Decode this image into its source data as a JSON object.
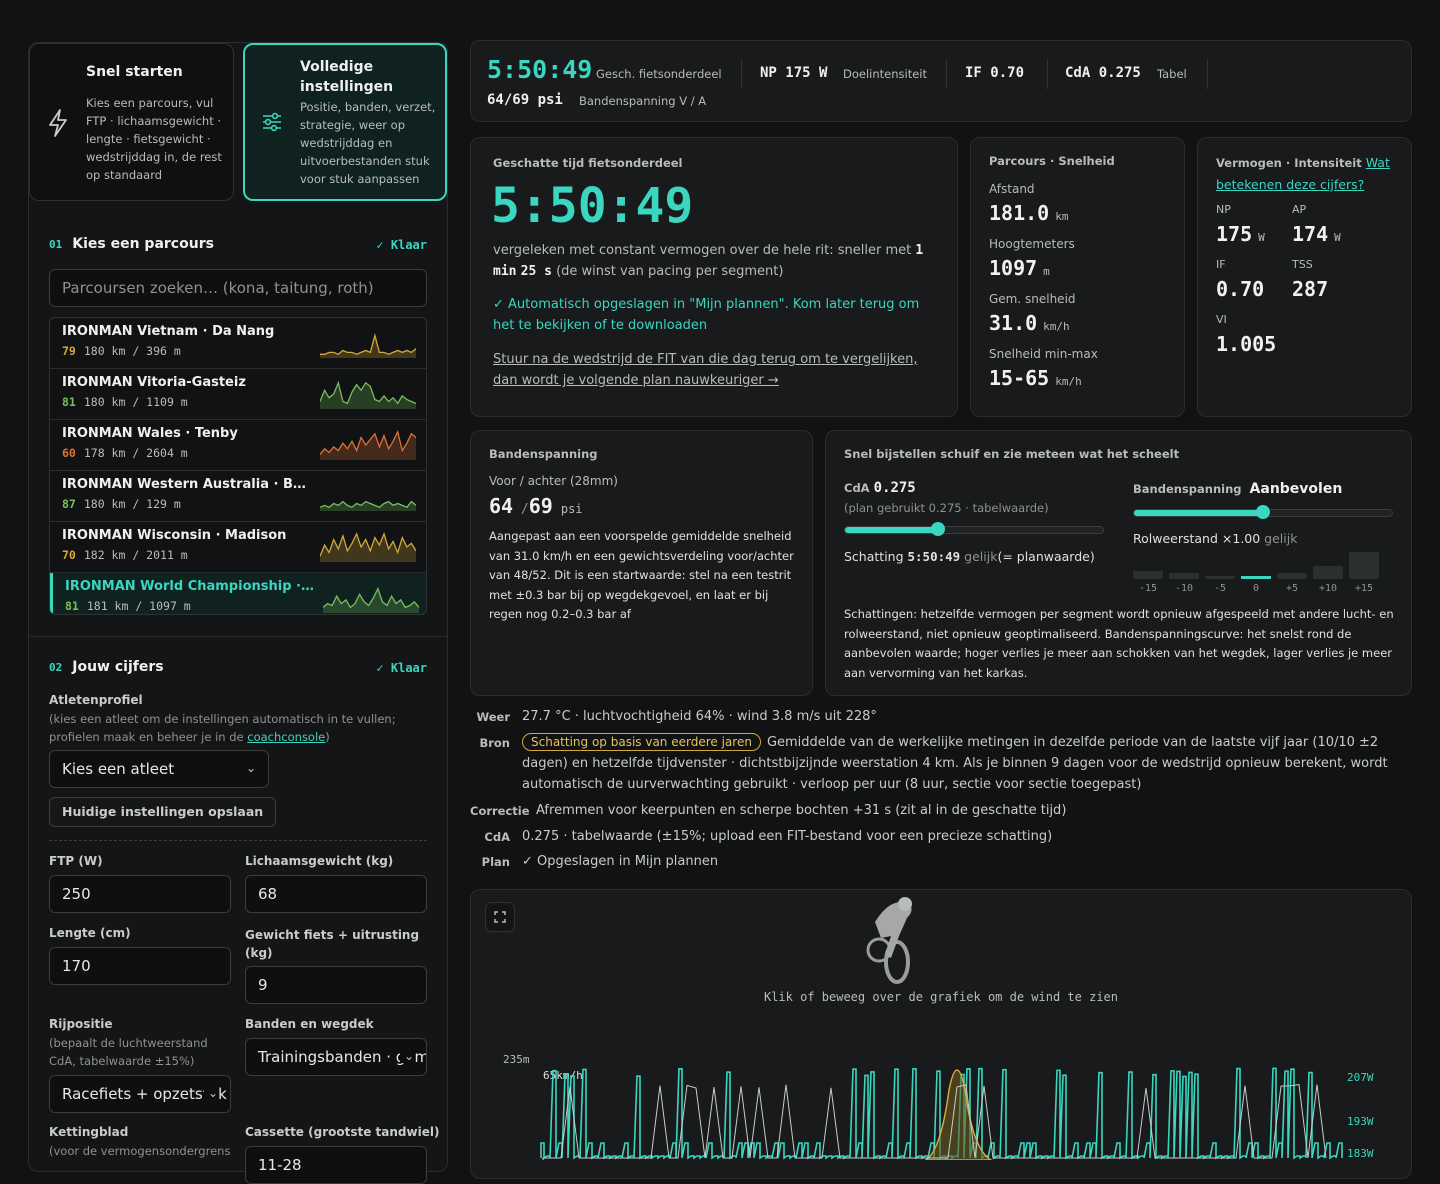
{
  "modes": {
    "quick": {
      "title": "Snel starten",
      "desc": "Kies een parcours, vul FTP · lichaamsgewicht · lengte · fietsgewicht · wedstrijddag in, de rest op standaard",
      "icon": "lightning-icon"
    },
    "full": {
      "title1": "Volledige",
      "title2": "instellingen",
      "desc": "Positie, banden, verzet, strategie, weer op wedstrijddag en uitvoerbestanden stuk voor stuk aanpassen",
      "icon": "sliders-icon"
    }
  },
  "section1": {
    "num": "01",
    "title": "Kies een parcours",
    "done": "✓ Klaar",
    "search_placeholder": "Parcoursen zoeken… (kona, taitung, roth)"
  },
  "courses": [
    {
      "name": "IRONMAN Vietnam · Da Nang",
      "score": "79",
      "stats": "180 km / 396 m",
      "color": "#d4a93b",
      "profile": [
        2,
        2,
        3,
        3,
        2,
        4,
        3,
        3,
        2,
        3,
        4,
        3,
        12,
        3,
        3,
        2,
        3,
        4,
        3,
        4,
        3,
        5
      ]
    },
    {
      "name": "IRONMAN Vitoria-Gasteiz",
      "score": "81",
      "stats": "180 km / 1109 m",
      "color": "#76c05a",
      "profile": [
        4,
        10,
        6,
        8,
        14,
        4,
        3,
        9,
        13,
        10,
        14,
        12,
        5,
        4,
        7,
        4,
        6,
        3,
        7,
        5,
        4,
        3
      ]
    },
    {
      "name": "IRONMAN Wales · Tenby",
      "score": "60",
      "stats": "178 km / 2604 m",
      "color": "#e0703a",
      "profile": [
        3,
        6,
        4,
        7,
        5,
        9,
        6,
        10,
        5,
        12,
        8,
        11,
        14,
        7,
        13,
        6,
        10,
        15,
        5,
        9,
        14,
        12
      ]
    },
    {
      "name": "IRONMAN Western Australia · Busselton",
      "score": "87",
      "stats": "180 km / 129 m",
      "color": "#76c05a",
      "profile": [
        2,
        3,
        2,
        4,
        3,
        5,
        3,
        2,
        4,
        3,
        5,
        4,
        3,
        2,
        4,
        5,
        3,
        4,
        3,
        2,
        5,
        3
      ]
    },
    {
      "name": "IRONMAN Wisconsin · Madison",
      "score": "70",
      "stats": "182 km / 2011 m",
      "color": "#d4a93b",
      "profile": [
        3,
        9,
        5,
        12,
        7,
        14,
        6,
        10,
        15,
        8,
        12,
        6,
        13,
        9,
        15,
        7,
        11,
        5,
        13,
        8,
        10,
        6
      ]
    },
    {
      "name": "IRONMAN World Championship · Kona",
      "score": "81",
      "stats": "181 km / 1097 m",
      "color": "#76c05a",
      "profile": [
        3,
        5,
        4,
        9,
        5,
        7,
        3,
        5,
        10,
        6,
        4,
        8,
        13,
        6,
        4,
        9,
        5,
        7,
        3,
        4,
        6,
        3
      ]
    }
  ],
  "section2": {
    "num": "02",
    "title": "Jouw cijfers",
    "done": "✓ Klaar"
  },
  "athlete": {
    "label": "Atletenprofiel",
    "hint": "(kies een atleet om de instellingen automatisch in te vullen; profielen maak en beheer je in de ",
    "hint_link": "coachconsole",
    "hint_end": ")",
    "select": "Kies een atleet",
    "save": "Huidige instellingen opslaan"
  },
  "inputs": {
    "ftp_label": "FTP  (W)",
    "ftp": "250",
    "weight_label": "Lichaamsgewicht (kg)",
    "weight": "68",
    "height_label": "Lengte (cm)",
    "height": "170",
    "bike_label": "Gewicht fiets + uitrusting (kg)",
    "bike": "9",
    "pos_label": "Rijpositie",
    "pos_hint": "(bepaalt de luchtweerstand CdA, tabelwaarde ±15%)",
    "pos": "Racefiets + opzetstuk",
    "tire_label": "Banden en wegdek",
    "tire": "Trainingsbanden · gemiddeld",
    "chain_label": "Kettingblad",
    "chain_hint": "(voor de vermogensondergrens",
    "cass_label": "Cassette (grootste tandwiel)",
    "cass": "11-28"
  },
  "summary": {
    "time": "5:50:49",
    "time_label": "Gesch. fietsonderdeel",
    "np": "NP 175 W",
    "np_label": "Doelintensiteit",
    "if": "IF 0.70",
    "cda": "CdA 0.275",
    "cda_label": "Tabel",
    "psi": "64/69 psi",
    "psi_label": "Bandenspanning V / A"
  },
  "est": {
    "label": "Geschatte tijd fietsonderdeel",
    "time": "5:50:49",
    "compare_a": "vergeleken met constant vermogen over de hele rit: sneller met ",
    "compare_b": "1 min",
    "compare_c": "25 s",
    "compare_d": " (de winst van pacing per segment)",
    "saved": "✓ Automatisch opgeslagen in \"Mijn plannen\". Kom later terug om het te bekijken of te downloaden",
    "fit": "Stuur na de wedstrijd de FIT van die dag terug om te vergelijken, dan wordt je volgende plan nauwkeuriger →"
  },
  "route": {
    "title": "Parcours · Snelheid",
    "dist_l": "Afstand",
    "dist": "181.0",
    "dist_u": "km",
    "elev_l": "Hoogtemeters",
    "elev": "1097",
    "elev_u": "m",
    "avg_l": "Gem. snelheid",
    "avg": "31.0",
    "avg_u": "km/h",
    "range_l": "Snelheid min-max",
    "range": "15-65",
    "range_u": "km/h"
  },
  "power": {
    "title": "Vermogen · Intensiteit",
    "link": "Wat betekenen deze cijfers?",
    "np_l": "NP",
    "np": "175",
    "ap_l": "AP",
    "ap": "174",
    "if_l": "IF",
    "if": "0.70",
    "tss_l": "TSS",
    "tss": "287",
    "vi_l": "VI",
    "vi": "1.005",
    "w": "W"
  },
  "tire": {
    "title": "Bandenspanning",
    "sub": "Voor / achter (28mm)",
    "f": "64",
    "r": "69",
    "u": "psi",
    "text": "Aangepast aan een voorspelde gemiddelde snelheid van 31.0 km/h en een gewichtsverdeling voor/achter van 48/52. Dit is een startwaarde: stel na een testrit met ±0.3 bar bij op wegdekgevoel, en laat er bij regen nog 0.2–0.3 bar af"
  },
  "adjust": {
    "title": "Snel bijstellen schuif en zie meteen wat het scheelt",
    "cda_l": "CdA",
    "cda": "0.275",
    "cda_hint": "(plan gebruikt 0.275 · tabelwaarde)",
    "cda_pos": 0.36,
    "est_a": "Schatting ",
    "est_t": "5:50:49",
    "est_b": " gelijk",
    "est_c": "(= planwaarde)",
    "tp_l": "Bandenspanning",
    "tp": "Aanbevolen",
    "tp_pos": 0.5,
    "rr_a": "Rolweerstand ×1.00",
    "rr_b": " gelijk",
    "bars": [
      {
        "label": "-15",
        "v": 0.3
      },
      {
        "label": "-10",
        "v": 0.2
      },
      {
        "label": "-5",
        "v": 0.12
      },
      {
        "label": "0",
        "v": 0.12
      },
      {
        "label": "+5",
        "v": 0.2
      },
      {
        "label": "+10",
        "v": 0.45
      },
      {
        "label": "+15",
        "v": 0.95
      }
    ],
    "note": "Schattingen: hetzelfde vermogen per segment wordt opnieuw afgespeeld met andere lucht- en rolweerstand, niet opnieuw geoptimaliseerd. Bandenspanningscurve: het snelst rond de aanbevolen waarde; hoger verlies je meer aan schokken van het wegdek, lager verlies je meer aan vervorming van het karkas."
  },
  "info": {
    "weer_l": "Weer",
    "weer": "27.7 °C · luchtvochtigheid 64% · wind 3.8 m/s uit 228°",
    "bron_l": "Bron",
    "bron_pill": "Schatting op basis van eerdere jaren",
    "bron": "Gemiddelde van de werkelijke metingen in dezelfde periode van de laatste vijf jaar (10/10 ±2 dagen) en hetzelfde tijdvenster · dichtstbijzijnde weerstation 4 km. Als je binnen 9 dagen voor de wedstrijd opnieuw berekent, wordt automatisch de uurverwachting gebruikt · verloop per uur (8 uur, sectie voor sectie toegepast)",
    "corr_l": "Correctie",
    "corr": "Afremmen voor keerpunten en scherpe bochten +31 s (zit al in de geschatte tijd)",
    "cda_l": "CdA",
    "cda": "0.275 · tabelwaarde (±15%; upload een FIT-bestand voor een precieze schatting)",
    "plan_l": "Plan",
    "plan": "✓ Opgeslagen in Mijn plannen"
  },
  "chart": {
    "hint": "Klik of beweeg over de grafiek om de wind te zien",
    "elev_label": "235m",
    "speed_label": "65km/h",
    "p1": "207W",
    "p2": "193W",
    "p3": "183W"
  }
}
